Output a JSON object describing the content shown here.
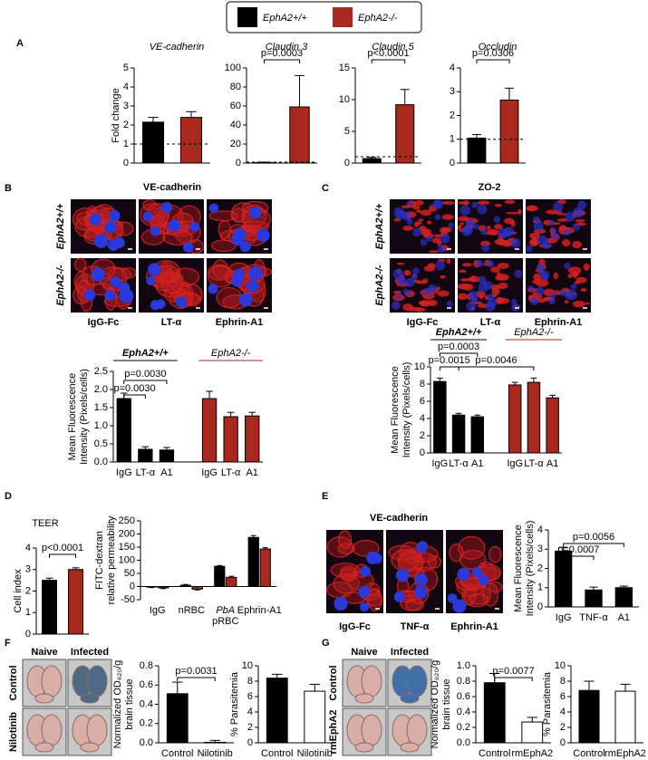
{
  "legend": [
    {
      "label": "EphA2+/+",
      "color": "#000000"
    },
    {
      "label": "EphA2-/-",
      "color": "#a8281e"
    }
  ],
  "panels": [
    "A",
    "B",
    "C",
    "D",
    "E",
    "F",
    "G"
  ],
  "micrographs": {
    "B": {
      "title": "VE-cadherin",
      "rows": [
        "EphA2+/+",
        "EphA2-/-"
      ],
      "columns": [
        "IgG-Fc",
        "LT-α",
        "Ephrin-A1"
      ]
    },
    "C": {
      "title": "ZO-2",
      "rows": [
        "EphA2+/+",
        "EphA2-/-"
      ],
      "columns": [
        "IgG-Fc",
        "LT-α",
        "Ephrin-A1"
      ]
    },
    "E": {
      "title": "VE-cadherin",
      "columns": [
        "IgG-Fc",
        "TNF-α",
        "Ephrin-A1"
      ]
    }
  },
  "brains": {
    "F": {
      "columns": [
        "Naive",
        "Infected"
      ],
      "rows": [
        "Control",
        "Nilotinib"
      ]
    },
    "G": {
      "columns": [
        "Naive",
        "Infected"
      ],
      "rows": [
        "Control",
        "rmEphA2"
      ]
    }
  },
  "chart_data": [
    {
      "type": "bar",
      "title": "VE-cadherin",
      "ylabel": [
        "Fold change"
      ],
      "values": [
        2.15,
        2.4
      ],
      "errors": [
        0.25,
        0.3
      ],
      "colors": [
        "#000000",
        "#a8281e"
      ],
      "ylim": [
        0,
        5
      ],
      "yticks": [
        0,
        1,
        2,
        3,
        4,
        5
      ],
      "reference_line": 1
    },
    {
      "type": "bar",
      "title": "Claudin 3",
      "values": [
        0.5,
        59
      ],
      "errors": [
        0.5,
        33
      ],
      "colors": [
        "#000000",
        "#a8281e"
      ],
      "ylim": [
        0,
        100
      ],
      "yticks": [
        0,
        20,
        40,
        60,
        80,
        100
      ],
      "reference_line": 1,
      "annotations": [
        "p=0.0003"
      ]
    },
    {
      "type": "bar",
      "title": "Claudin 5",
      "values": [
        0.7,
        9.2
      ],
      "errors": [
        0.2,
        2.4
      ],
      "colors": [
        "#000000",
        "#a8281e"
      ],
      "ylim": [
        0,
        15
      ],
      "yticks": [
        0,
        5,
        10,
        15
      ],
      "reference_line": 1,
      "annotations": [
        "p<0.0001"
      ]
    },
    {
      "type": "bar",
      "title": "Occludin",
      "values": [
        1.05,
        2.65
      ],
      "errors": [
        0.15,
        0.5
      ],
      "colors": [
        "#000000",
        "#a8281e"
      ],
      "ylim": [
        0,
        4
      ],
      "yticks": [
        0,
        1,
        2,
        3,
        4
      ],
      "reference_line": 1,
      "annotations": [
        "p=0.0306"
      ]
    },
    {
      "type": "block_bar",
      "ylabel": [
        "Mean Fluorescence",
        "Intensity (Pixels/cells)"
      ],
      "categories": [
        "IgG",
        "LT-α",
        "A1"
      ],
      "group_labels": [
        "EphA2+/+",
        "EphA2-/-"
      ],
      "series": [
        {
          "color": "#000000",
          "values": [
            1.75,
            0.35,
            0.33
          ],
          "errors": [
            0.15,
            0.07,
            0.07
          ]
        },
        {
          "color": "#a8281e",
          "values": [
            1.75,
            1.25,
            1.27
          ],
          "errors": [
            0.2,
            0.12,
            0.1
          ]
        }
      ],
      "ylim": [
        0,
        2.5
      ],
      "yticks": [
        {
          "value": 0,
          "label": "0.0"
        },
        0.5,
        {
          "value": 1,
          "label": "1.0"
        },
        1.5,
        {
          "value": 2,
          "label": "2.0"
        },
        2.5
      ],
      "annotations": [
        "p=0.0030",
        "p=0.0030"
      ]
    },
    {
      "type": "block_bar",
      "ylabel": [
        "Mean Fluorescence",
        "Intensity (Pixels/cells)"
      ],
      "categories": [
        "IgG",
        "LT-α",
        "A1"
      ],
      "group_labels": [
        "EphA2+/+",
        "EphA2-/-"
      ],
      "series": [
        {
          "color": "#000000",
          "values": [
            8.3,
            4.4,
            4.2
          ],
          "errors": [
            0.4,
            0.2,
            0.2
          ]
        },
        {
          "color": "#a8281e",
          "values": [
            7.9,
            8.2,
            6.4
          ],
          "errors": [
            0.3,
            0.5,
            0.3
          ]
        }
      ],
      "ylim": [
        0,
        10
      ],
      "yticks": [
        0,
        2,
        4,
        6,
        8,
        10
      ],
      "annotations": [
        "p=0.0003",
        "p=0.0015",
        "p=0.0046"
      ]
    },
    {
      "type": "bar",
      "title": "TEER",
      "ylabel": [
        "Cell index"
      ],
      "values": [
        2.5,
        3.0
      ],
      "errors": [
        0.1,
        0.08
      ],
      "colors": [
        "#000000",
        "#a8281e"
      ],
      "ylim": [
        0,
        4
      ],
      "yticks": [
        0,
        1,
        2,
        3,
        4
      ],
      "annotations": [
        "p<0.0001"
      ]
    },
    {
      "type": "grouped_bar",
      "ylabel": [
        "FITC-dextran",
        "relative permeability"
      ],
      "categories": [
        "IgG",
        "nRBC",
        "PbA pRBC",
        "Ephrin-A1"
      ],
      "series": [
        {
          "color": "#000000",
          "values": [
            -2,
            5,
            77,
            187
          ],
          "errors": [
            2,
            3,
            3,
            7
          ]
        },
        {
          "color": "#a8281e",
          "values": [
            -5,
            -10,
            35,
            143
          ],
          "errors": [
            3,
            3,
            4,
            5
          ]
        }
      ],
      "ylim": [
        -50,
        250
      ],
      "yticks": [
        -50,
        0,
        50,
        100,
        150,
        200,
        250
      ]
    },
    {
      "type": "bar",
      "ylabel": [
        "Mean Fluorescence",
        "Intensity (Pixels/cells)"
      ],
      "categories": [
        "IgG",
        "TNF-α",
        "A1"
      ],
      "values": [
        2.9,
        0.88,
        1.0
      ],
      "errors": [
        0.2,
        0.15,
        0.08
      ],
      "colors": [
        "#000000",
        "#000000",
        "#000000"
      ],
      "ylim": [
        0,
        4
      ],
      "yticks": [
        0,
        1,
        2,
        3,
        4
      ],
      "annotations": [
        "p=0.0056",
        "p=0.0007"
      ]
    },
    {
      "type": "bar",
      "ylabel": [
        "Normalized OD₆₂₀/g",
        "brain tissue"
      ],
      "categories": [
        "Control",
        "Nilotinib"
      ],
      "values": [
        0.51,
        0.005
      ],
      "errors": [
        0.12,
        0.02
      ],
      "colors": [
        "#000000",
        "#ffffff"
      ],
      "ylim": [
        0,
        0.8
      ],
      "yticks": [
        {
          "value": 0,
          "label": "0.0"
        },
        0.2,
        0.4,
        0.6,
        0.8
      ],
      "annotations": [
        "p=0.0031"
      ]
    },
    {
      "type": "bar",
      "ylabel": [
        "% Parasitemia"
      ],
      "categories": [
        "Control",
        "Nilotinib"
      ],
      "values": [
        8.4,
        6.7
      ],
      "errors": [
        0.5,
        0.9
      ],
      "colors": [
        "#000000",
        "#ffffff"
      ],
      "ylim": [
        0,
        10
      ],
      "yticks": [
        0,
        2,
        4,
        6,
        8,
        10
      ]
    },
    {
      "type": "bar",
      "ylabel": [
        "Normalized OD₆₂₀/g",
        "brain tissue"
      ],
      "categories": [
        "Control",
        "rmEphA2"
      ],
      "values": [
        0.78,
        0.27
      ],
      "errors": [
        0.12,
        0.06
      ],
      "colors": [
        "#000000",
        "#ffffff"
      ],
      "ylim": [
        0,
        1.0
      ],
      "yticks": [
        {
          "value": 0,
          "label": "0.0"
        },
        0.2,
        0.4,
        0.6,
        0.8,
        {
          "value": 1,
          "label": "1.0"
        }
      ],
      "annotations": [
        "p=0.0077"
      ]
    },
    {
      "type": "bar",
      "ylabel": [
        "% Parasitemia"
      ],
      "categories": [
        "Control",
        "rmEphA2"
      ],
      "values": [
        6.8,
        6.7
      ],
      "errors": [
        1.2,
        0.9
      ],
      "colors": [
        "#000000",
        "#ffffff"
      ],
      "ylim": [
        0,
        10
      ],
      "yticks": [
        0,
        2,
        4,
        6,
        8,
        10
      ]
    }
  ]
}
